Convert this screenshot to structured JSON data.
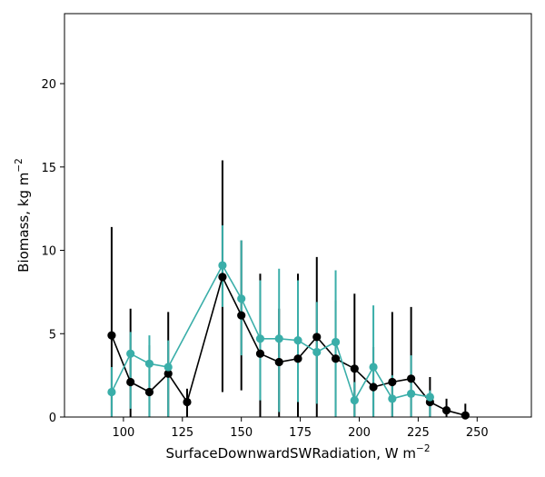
{
  "chart_data": {
    "type": "line",
    "title": "",
    "xlabel": "SurfaceDownwardSWRadiation,  W m",
    "xlabel_sup": "−2",
    "ylabel": "Biomass,  kg m",
    "ylabel_sup": "−2",
    "xlim": [
      75,
      273
    ],
    "ylim": [
      0,
      24.2
    ],
    "xticks": [
      100,
      125,
      150,
      175,
      200,
      225,
      250
    ],
    "yticks": [
      0,
      5,
      10,
      15,
      20
    ],
    "grid": false,
    "legend": "none",
    "series": [
      {
        "color": "#000000",
        "points": [
          {
            "x": 95,
            "y": 4.9,
            "err_low": 0.0,
            "err_high": 11.4
          },
          {
            "x": 103,
            "y": 2.1,
            "err_low": 0.0,
            "err_high": 6.5
          },
          {
            "x": 111,
            "y": 1.5,
            "err_low": 0.0,
            "err_high": 4.3
          },
          {
            "x": 119,
            "y": 2.6,
            "err_low": 0.0,
            "err_high": 6.3
          },
          {
            "x": 127,
            "y": 0.9,
            "err_low": 0.0,
            "err_high": 1.7
          },
          {
            "x": 142,
            "y": 8.4,
            "err_low": 1.5,
            "err_high": 15.4
          },
          {
            "x": 150,
            "y": 6.1,
            "err_low": 1.6,
            "err_high": 10.6
          },
          {
            "x": 158,
            "y": 3.8,
            "err_low": 0.0,
            "err_high": 8.6
          },
          {
            "x": 166,
            "y": 3.3,
            "err_low": 0.0,
            "err_high": 6.5
          },
          {
            "x": 174,
            "y": 3.5,
            "err_low": 0.0,
            "err_high": 8.6
          },
          {
            "x": 182,
            "y": 4.8,
            "err_low": 0.0,
            "err_high": 9.6
          },
          {
            "x": 190,
            "y": 3.5,
            "err_low": 0.0,
            "err_high": 7.0
          },
          {
            "x": 198,
            "y": 2.9,
            "err_low": 0.0,
            "err_high": 7.4
          },
          {
            "x": 206,
            "y": 1.8,
            "err_low": 0.0,
            "err_high": 4.2
          },
          {
            "x": 214,
            "y": 2.1,
            "err_low": 0.0,
            "err_high": 6.3
          },
          {
            "x": 222,
            "y": 2.3,
            "err_low": 0.0,
            "err_high": 6.6
          },
          {
            "x": 230,
            "y": 0.9,
            "err_low": 0.0,
            "err_high": 2.4
          },
          {
            "x": 237,
            "y": 0.4,
            "err_low": 0.0,
            "err_high": 1.1
          },
          {
            "x": 245,
            "y": 0.1,
            "err_low": 0.0,
            "err_high": 0.8
          }
        ]
      },
      {
        "color": "#3aaea9",
        "points": [
          {
            "x": 95,
            "y": 1.5,
            "err_low": 0.0,
            "err_high": 3.0
          },
          {
            "x": 103,
            "y": 3.8,
            "err_low": 0.5,
            "err_high": 5.1
          },
          {
            "x": 111,
            "y": 3.2,
            "err_low": 0.0,
            "err_high": 4.9
          },
          {
            "x": 119,
            "y": 3.0,
            "err_low": 0.0,
            "err_high": 4.6
          },
          {
            "x": 142,
            "y": 9.1,
            "err_low": 6.6,
            "err_high": 11.5
          },
          {
            "x": 150,
            "y": 7.1,
            "err_low": 3.7,
            "err_high": 10.6
          },
          {
            "x": 158,
            "y": 4.7,
            "err_low": 1.0,
            "err_high": 8.2
          },
          {
            "x": 166,
            "y": 4.7,
            "err_low": 0.3,
            "err_high": 8.9
          },
          {
            "x": 174,
            "y": 4.6,
            "err_low": 0.9,
            "err_high": 8.2
          },
          {
            "x": 182,
            "y": 3.9,
            "err_low": 0.8,
            "err_high": 6.9
          },
          {
            "x": 190,
            "y": 4.5,
            "err_low": 0.0,
            "err_high": 8.8
          },
          {
            "x": 198,
            "y": 1.0,
            "err_low": 0.0,
            "err_high": 2.1
          },
          {
            "x": 206,
            "y": 3.0,
            "err_low": 0.0,
            "err_high": 6.7
          },
          {
            "x": 214,
            "y": 1.1,
            "err_low": 0.0,
            "err_high": 2.5
          },
          {
            "x": 222,
            "y": 1.4,
            "err_low": 0.0,
            "err_high": 3.7
          },
          {
            "x": 230,
            "y": 1.2,
            "err_low": 0.0,
            "err_high": 1.6
          }
        ]
      }
    ]
  }
}
